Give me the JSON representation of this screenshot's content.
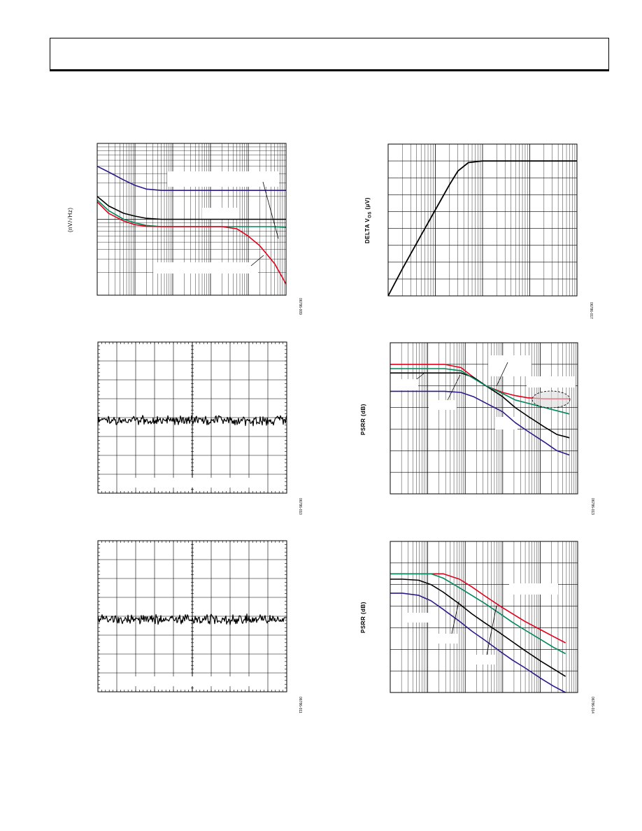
{
  "page": {
    "colors": {
      "red": "#e3001b",
      "green": "#00875a",
      "black": "#000000",
      "blue": "#2b1a8a",
      "highlight": "#dcdcdc"
    }
  },
  "chart_data": [
    {
      "id": "noise-density",
      "type": "line",
      "ylabel": "(nV/√Hz)",
      "figure_code": "06786-009",
      "xscale": "log",
      "yscale": "log",
      "x": [
        1,
        2,
        5,
        10,
        20,
        50,
        100,
        200,
        500,
        1000,
        2000,
        5000,
        10000,
        20000,
        50000,
        100000
      ],
      "ylim": [
        1,
        100
      ],
      "series": [
        {
          "color": "blue",
          "values": [
            50,
            42,
            33,
            28,
            25,
            24,
            24,
            24,
            24,
            24,
            24,
            24,
            24,
            24,
            24,
            24
          ]
        },
        {
          "color": "black",
          "values": [
            20,
            15,
            12,
            11,
            10.3,
            10,
            10,
            10,
            10,
            10,
            10,
            10,
            10,
            10,
            10,
            10
          ]
        },
        {
          "color": "green",
          "values": [
            18,
            13,
            10,
            9,
            8.3,
            8,
            8,
            8,
            8,
            8,
            8,
            8,
            8,
            8,
            8,
            7.8
          ]
        },
        {
          "color": "red",
          "values": [
            17,
            12,
            9.5,
            8.5,
            8.1,
            8,
            8,
            8,
            8,
            8,
            8,
            7.5,
            6,
            4.5,
            2.6,
            1.4
          ]
        }
      ]
    },
    {
      "id": "delta-vos",
      "type": "line",
      "ylabel_prefix": "DELTA V",
      "ylabel_sub": "OS",
      "ylabel_suffix": " (µV)",
      "figure_code": "06786-017",
      "xscale": "log",
      "x": [
        1,
        2,
        5,
        10,
        20,
        30,
        50,
        100,
        200,
        500,
        1000,
        10000
      ],
      "ylim": [
        0,
        9
      ],
      "series": [
        {
          "color": "black",
          "values": [
            0,
            1.6,
            3.6,
            5.1,
            6.6,
            7.4,
            7.9,
            8.0,
            8.0,
            8.0,
            8.0,
            8.0
          ]
        }
      ]
    },
    {
      "id": "noise-time-1",
      "type": "line",
      "figure_code": "06786-010",
      "series": [
        {
          "color": "black",
          "values": "noise-trace"
        }
      ]
    },
    {
      "id": "psrr-1",
      "type": "line",
      "ylabel": "PSRR (dB)",
      "figure_code": "06786-013",
      "xscale": "log",
      "x": [
        10,
        20,
        50,
        100,
        200,
        500,
        1000,
        2000,
        5000,
        10000,
        20000,
        50000,
        100000,
        200000
      ],
      "ylim": [
        0,
        140
      ],
      "series": [
        {
          "color": "red",
          "values": [
            120,
            120,
            120,
            120,
            120,
            117,
            108,
            100,
            94,
            91,
            89,
            88,
            88,
            88
          ]
        },
        {
          "color": "black",
          "values": [
            112,
            112,
            112,
            112,
            112,
            112,
            108,
            100,
            90,
            80,
            72,
            62,
            55,
            52
          ]
        },
        {
          "color": "green",
          "values": [
            116,
            116,
            116,
            116,
            116,
            114,
            107,
            100,
            93,
            87,
            84,
            80,
            77,
            74
          ]
        },
        {
          "color": "blue",
          "values": [
            95,
            95,
            95,
            95,
            95,
            94,
            90,
            84,
            76,
            66,
            58,
            48,
            40,
            36
          ]
        }
      ]
    },
    {
      "id": "noise-time-2",
      "type": "line",
      "figure_code": "06786-011",
      "series": [
        {
          "color": "black",
          "values": "noise-trace"
        }
      ]
    },
    {
      "id": "psrr-2",
      "type": "line",
      "ylabel": "PSRR (dB)",
      "figure_code": "06786-014",
      "xscale": "log",
      "x": [
        1,
        2,
        5,
        10,
        20,
        50,
        100,
        200,
        500,
        1000,
        2000,
        5000,
        10000,
        20000
      ],
      "ylim": [
        0,
        140
      ],
      "series": [
        {
          "color": "red",
          "values": [
            110,
            110,
            110,
            110,
            110,
            105,
            98,
            90,
            80,
            73,
            66,
            58,
            52,
            46
          ]
        },
        {
          "color": "green",
          "values": [
            110,
            110,
            110,
            110,
            106,
            97,
            90,
            83,
            73,
            65,
            58,
            49,
            42,
            36
          ]
        },
        {
          "color": "black",
          "values": [
            105,
            105,
            104,
            100,
            93,
            82,
            73,
            65,
            55,
            47,
            39,
            29,
            22,
            15
          ]
        },
        {
          "color": "blue",
          "values": [
            92,
            92,
            90,
            85,
            77,
            66,
            57,
            49,
            38,
            30,
            23,
            13,
            6,
            0
          ]
        }
      ]
    }
  ]
}
